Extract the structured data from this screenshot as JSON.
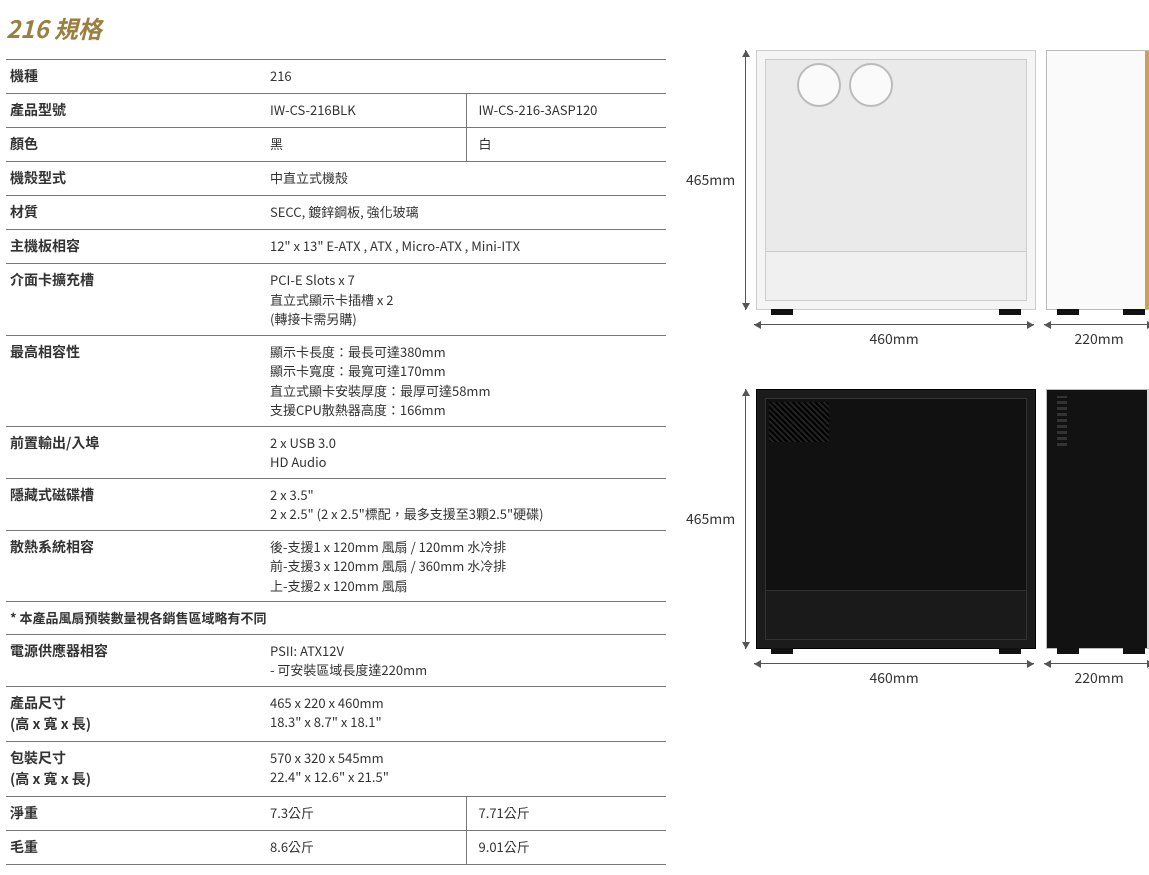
{
  "title": "216 規格",
  "dims": {
    "height": "465mm",
    "width_side": "460mm",
    "width_front": "220mm"
  },
  "rows": [
    {
      "type": "single",
      "label": "機種",
      "value": "216"
    },
    {
      "type": "split",
      "label": "產品型號",
      "value1": "IW-CS-216BLK",
      "value2": "IW-CS-216-3ASP120"
    },
    {
      "type": "split",
      "label": "顏色",
      "value1": "黑",
      "value2": "白"
    },
    {
      "type": "single",
      "label": "機殼型式",
      "value": "中直立式機殼"
    },
    {
      "type": "single",
      "label": "材質",
      "value": "SECC, 鍍鋅鋼板, 強化玻璃"
    },
    {
      "type": "single",
      "label": "主機板相容",
      "value": "12\" x 13\" E-ATX , ATX , Micro-ATX , Mini-ITX"
    },
    {
      "type": "multi",
      "label": "介面卡擴充槽",
      "lines": [
        "PCI-E Slots x 7",
        "直立式顯示卡插槽 x 2",
        "(轉接卡需另購)"
      ]
    },
    {
      "type": "multi",
      "label": "最高相容性",
      "lines": [
        "顯示卡長度：最長可達380mm",
        "顯示卡寬度：最寬可達170mm",
        "直立式顯卡安裝厚度：最厚可達58mm",
        "支援CPU散熱器高度：166mm"
      ]
    },
    {
      "type": "multi",
      "label": "前置輸出/入埠",
      "lines": [
        "2 x USB 3.0",
        "HD Audio"
      ]
    },
    {
      "type": "multi",
      "label": "隱藏式磁碟槽",
      "lines": [
        "2 x 3.5\"",
        "2 x 2.5\" (2 x 2.5\"標配，最多支援至3顆2.5\"硬碟)"
      ]
    },
    {
      "type": "multi",
      "label": "散熱系統相容",
      "lines": [
        "後-支援1 x 120mm 風扇 / 120mm 水冷排",
        "前-支援3 x 120mm 風扇 / 360mm 水冷排",
        "上-支援2 x 120mm 風扇"
      ]
    },
    {
      "type": "note",
      "text": "* 本產品風扇預裝數量視各銷售區域略有不同"
    },
    {
      "type": "multi",
      "label": "電源供應器相容",
      "lines": [
        "PSII: ATX12V",
        "- 可安裝區域長度達220mm"
      ]
    },
    {
      "type": "multi",
      "label": "產品尺寸\n(高 x 寬 x 長)",
      "lines": [
        "465 x 220 x 460mm",
        "18.3\" x 8.7\" x 18.1\""
      ]
    },
    {
      "type": "multi",
      "label": "包裝尺寸\n(高 x 寬 x 長)",
      "lines": [
        "570 x 320 x 545mm",
        "22.4\" x 12.6\" x 21.5\""
      ]
    },
    {
      "type": "split",
      "label": "淨重",
      "value1": "7.3公斤",
      "value2": "7.71公斤"
    },
    {
      "type": "split",
      "label": "毛重",
      "value1": "8.6公斤",
      "value2": "9.01公斤"
    }
  ]
}
